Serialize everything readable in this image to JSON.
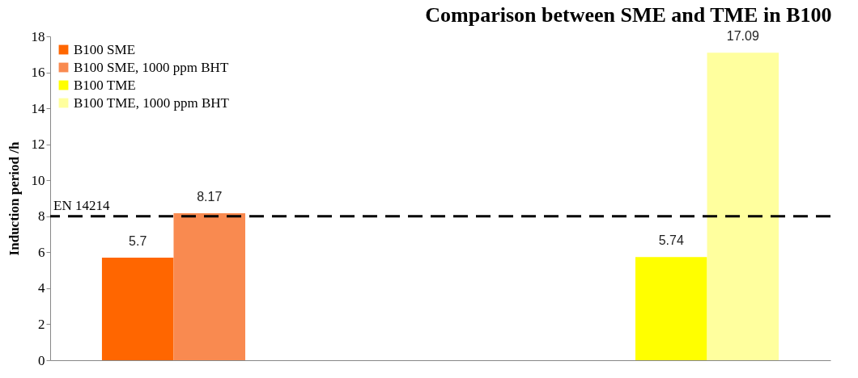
{
  "chart_data": {
    "type": "bar",
    "title": "Comparison between SME and TME in B100",
    "ylabel": "Induction period /h",
    "categories": [
      null,
      null
    ],
    "series": [
      {
        "name": "B100 SME",
        "color": "#ff6600",
        "values": [
          5.7,
          null
        ]
      },
      {
        "name": "B100 SME, 1000 ppm BHT",
        "color": "#f98a50",
        "values": [
          8.17,
          null
        ]
      },
      {
        "name": "B100 TME",
        "color": "#ffff00",
        "values": [
          null,
          5.74
        ]
      },
      {
        "name": "B100 TME, 1000 ppm BHT",
        "color": "#ffff9e",
        "values": [
          null,
          17.09
        ]
      }
    ],
    "ylim": [
      0,
      18
    ],
    "yticks": [
      0,
      2,
      4,
      6,
      8,
      10,
      12,
      14,
      16,
      18
    ],
    "grid": false,
    "legend": "top left",
    "data_labels": true,
    "ref_lines": [
      {
        "axis": "y",
        "value": 8,
        "label": "EN 14214",
        "color": "#000000",
        "line_style": "dashed"
      }
    ]
  }
}
